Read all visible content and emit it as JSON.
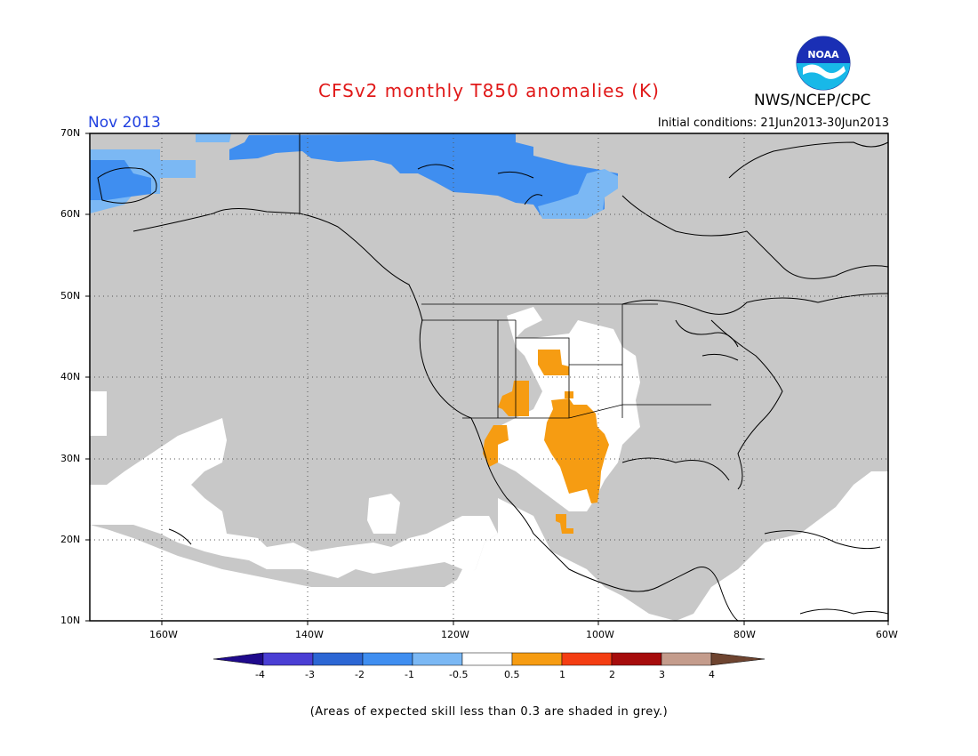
{
  "title": "CFSv2 monthly T850 anomalies (K)",
  "month": "Nov 2013",
  "initial_conditions": "Initial conditions: 21Jun2013-30Jun2013",
  "agency": "NWS/NCEP/CPC",
  "logo_text": "NOAA",
  "note": "(Areas of expected skill less than 0.3 are shaded in grey.)",
  "colors": {
    "grey_low_skill": "#c8c8c8",
    "neutral": "#ffffff",
    "land_outline": "#000000"
  },
  "lat_labels": [
    "70N",
    "60N",
    "50N",
    "40N",
    "30N",
    "20N",
    "10N"
  ],
  "lon_labels": [
    "160W",
    "140W",
    "120W",
    "100W",
    "80W",
    "60W"
  ],
  "colorbar": {
    "ticks": [
      "-4",
      "-3",
      "-2",
      "-1",
      "-0.5",
      "0.5",
      "1",
      "2",
      "3",
      "4"
    ],
    "colors": [
      "#1f0a8c",
      "#4a3ed4",
      "#2c66d4",
      "#3f8ef0",
      "#7bb8f4",
      "#ffffff",
      "#f69c12",
      "#f43d12",
      "#a60c0c",
      "#c49c8c",
      "#6e4430"
    ]
  },
  "anomaly_regions": [
    {
      "name": "alaska-west-cold",
      "category": "-1",
      "color": "#7bb8f4"
    },
    {
      "name": "arctic-coast-cold",
      "category": "-2",
      "color": "#3f8ef0"
    },
    {
      "name": "southwest-us-warm",
      "category": "0.5",
      "color": "#f69c12"
    },
    {
      "name": "mexico-warm",
      "category": "0.5",
      "color": "#f69c12"
    }
  ]
}
